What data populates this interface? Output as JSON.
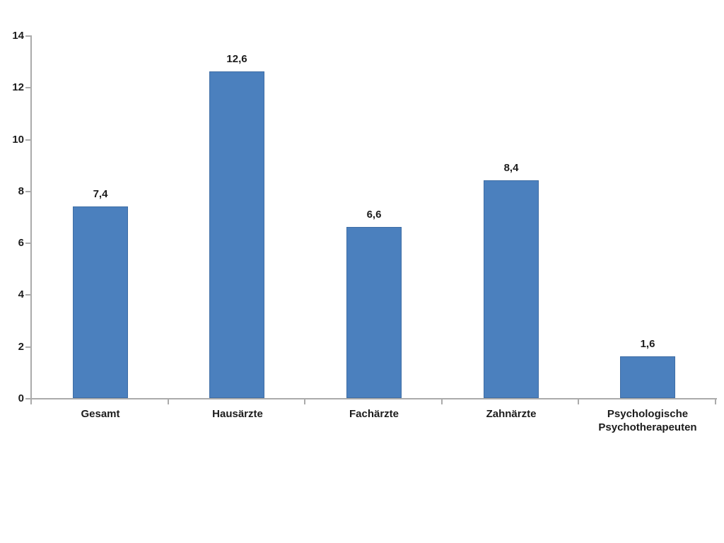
{
  "chart_data": {
    "type": "bar",
    "title": "",
    "xlabel": "",
    "ylabel": "",
    "categories": [
      "Gesamt",
      "Hausärzte",
      "Fachärzte",
      "Zahnärzte",
      "Psychologische Psychotherapeuten"
    ],
    "values": [
      7.4,
      12.6,
      6.6,
      8.4,
      1.6
    ],
    "value_labels": [
      "7,4",
      "12,6",
      "6,6",
      "8,4",
      "1,6"
    ],
    "ylim": [
      0,
      14
    ],
    "ytick_step": 2,
    "ytick_labels": [
      "0",
      "2",
      "4",
      "6",
      "8",
      "10",
      "12",
      "14"
    ],
    "grid": false,
    "legend": false,
    "decimal_separator": ",",
    "colors": {
      "bar_fill": "#4b80be",
      "bar_border": "#3e6da5",
      "axis": "#ababab",
      "text": "#1c1c1c",
      "background": "#ffffff"
    }
  }
}
